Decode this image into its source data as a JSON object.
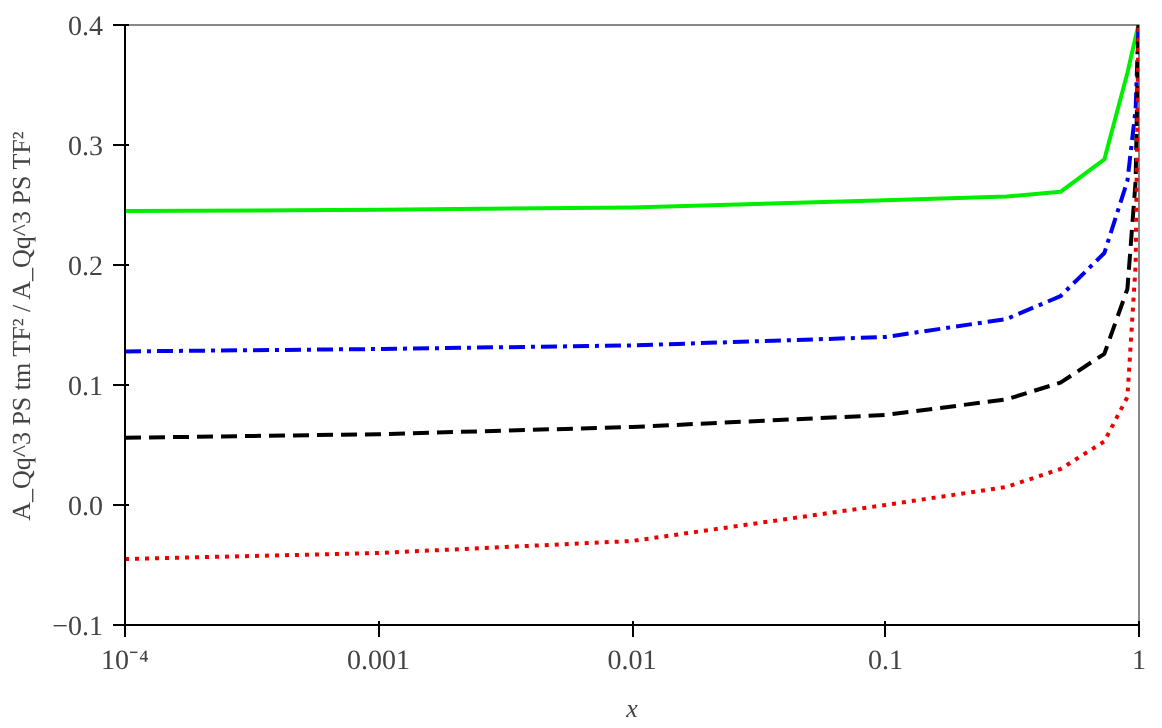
{
  "chart_data": {
    "type": "line",
    "xlabel": "x",
    "ylabel": "A_Qq^3 PS tm TF² / A_Qq^3 PS TF²",
    "log": "x",
    "grid": false,
    "marker": "none",
    "xlim": [
      0.0001,
      1
    ],
    "ylim": [
      -0.1,
      0.4
    ],
    "xticks": [
      {
        "value": 0.0001,
        "label": "10⁻⁴"
      },
      {
        "value": 0.001,
        "label": "0.001"
      },
      {
        "value": 0.01,
        "label": "0.01"
      },
      {
        "value": 0.1,
        "label": "0.1"
      },
      {
        "value": 1,
        "label": "1"
      }
    ],
    "yticks": [
      {
        "value": -0.1,
        "label": "−0.1"
      },
      {
        "value": 0,
        "label": "0.0"
      },
      {
        "value": 0.1,
        "label": "0.1"
      },
      {
        "value": 0.2,
        "label": "0.2"
      },
      {
        "value": 0.3,
        "label": "0.3"
      },
      {
        "value": 0.4,
        "label": "0.4"
      }
    ],
    "x": [
      0.0001,
      0.001,
      0.01,
      0.1,
      0.3,
      0.49,
      0.73,
      0.9,
      0.97,
      0.995
    ],
    "series": [
      {
        "color": "#00ee00",
        "line_style": "solid",
        "values": [
          0.245,
          0.246,
          0.248,
          0.254,
          0.257,
          0.261,
          0.288,
          0.36,
          0.39,
          0.4
        ]
      },
      {
        "color": "#0000ee",
        "line_style": "dashdot",
        "values": [
          0.128,
          0.13,
          0.133,
          0.14,
          0.155,
          0.174,
          0.21,
          0.27,
          0.33,
          0.4
        ]
      },
      {
        "color": "#000000",
        "line_style": "dashed",
        "values": [
          0.056,
          0.059,
          0.065,
          0.075,
          0.088,
          0.102,
          0.126,
          0.18,
          0.27,
          0.4
        ]
      },
      {
        "color": "#ee0000",
        "line_style": "dotted",
        "values": [
          -0.045,
          -0.04,
          -0.03,
          0.0,
          0.015,
          0.03,
          0.053,
          0.09,
          0.2,
          0.4
        ]
      }
    ]
  }
}
